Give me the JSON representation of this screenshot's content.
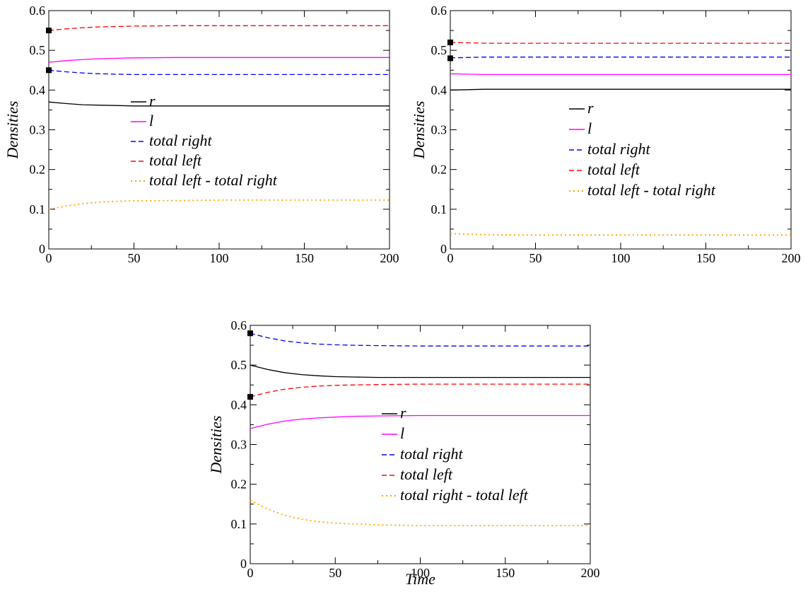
{
  "chart_data": [
    {
      "type": "line",
      "title": "",
      "xlabel": "",
      "ylabel": "Densities",
      "xlim": [
        0,
        200
      ],
      "ylim": [
        0,
        0.6
      ],
      "xticks": [
        0,
        50,
        100,
        150,
        200
      ],
      "yticks": [
        0,
        0.1,
        0.2,
        0.3,
        0.4,
        0.5,
        0.6
      ],
      "grid": false,
      "legend_position": "center",
      "series": [
        {
          "name": "r",
          "style": "solid",
          "color": "#000000",
          "x": [
            0,
            10,
            20,
            30,
            40,
            50,
            75,
            100,
            150,
            200
          ],
          "values": [
            0.37,
            0.366,
            0.363,
            0.362,
            0.361,
            0.36,
            0.36,
            0.36,
            0.36,
            0.36
          ]
        },
        {
          "name": "l",
          "style": "solid",
          "color": "#ff00ff",
          "x": [
            0,
            10,
            20,
            30,
            40,
            50,
            75,
            100,
            150,
            200
          ],
          "values": [
            0.47,
            0.474,
            0.477,
            0.479,
            0.48,
            0.481,
            0.482,
            0.482,
            0.482,
            0.482
          ]
        },
        {
          "name": "total right",
          "style": "dashed",
          "color": "#0000ff",
          "x": [
            0,
            10,
            20,
            30,
            40,
            50,
            75,
            100,
            150,
            200
          ],
          "values": [
            0.45,
            0.446,
            0.443,
            0.441,
            0.44,
            0.439,
            0.439,
            0.439,
            0.439,
            0.439
          ]
        },
        {
          "name": "total left",
          "style": "dashed",
          "color": "#ff0000",
          "x": [
            0,
            10,
            20,
            30,
            40,
            50,
            75,
            100,
            150,
            200
          ],
          "values": [
            0.55,
            0.554,
            0.557,
            0.559,
            0.56,
            0.561,
            0.562,
            0.562,
            0.562,
            0.562
          ]
        },
        {
          "name": "total left - total right",
          "style": "dotted",
          "color": "#ffa500",
          "x": [
            0,
            10,
            20,
            30,
            40,
            50,
            75,
            100,
            150,
            200
          ],
          "values": [
            0.1,
            0.108,
            0.114,
            0.118,
            0.12,
            0.121,
            0.122,
            0.123,
            0.123,
            0.123
          ]
        }
      ],
      "markers": [
        {
          "x": 0,
          "y": 0.55
        },
        {
          "x": 0,
          "y": 0.45
        }
      ]
    },
    {
      "type": "line",
      "title": "",
      "xlabel": "",
      "ylabel": "Densities",
      "xlim": [
        0,
        200
      ],
      "ylim": [
        0,
        0.6
      ],
      "xticks": [
        0,
        50,
        100,
        150,
        200
      ],
      "yticks": [
        0,
        0.1,
        0.2,
        0.3,
        0.4,
        0.5,
        0.6
      ],
      "grid": false,
      "legend_position": "center",
      "series": [
        {
          "name": "r",
          "style": "solid",
          "color": "#000000",
          "x": [
            0,
            10,
            20,
            50,
            100,
            150,
            200
          ],
          "values": [
            0.4,
            0.401,
            0.402,
            0.402,
            0.402,
            0.402,
            0.402
          ]
        },
        {
          "name": "l",
          "style": "solid",
          "color": "#ff00ff",
          "x": [
            0,
            10,
            20,
            50,
            100,
            150,
            200
          ],
          "values": [
            0.441,
            0.44,
            0.439,
            0.439,
            0.439,
            0.439,
            0.439
          ]
        },
        {
          "name": "total right",
          "style": "dashed",
          "color": "#0000ff",
          "x": [
            0,
            10,
            20,
            50,
            100,
            150,
            200
          ],
          "values": [
            0.481,
            0.482,
            0.483,
            0.483,
            0.483,
            0.483,
            0.483
          ]
        },
        {
          "name": "total left",
          "style": "dashed",
          "color": "#ff0000",
          "x": [
            0,
            10,
            20,
            50,
            100,
            150,
            200
          ],
          "values": [
            0.52,
            0.519,
            0.518,
            0.518,
            0.518,
            0.518,
            0.518
          ]
        },
        {
          "name": "total left - total right",
          "style": "dotted",
          "color": "#ffa500",
          "x": [
            0,
            10,
            20,
            50,
            100,
            150,
            200
          ],
          "values": [
            0.039,
            0.037,
            0.036,
            0.035,
            0.035,
            0.035,
            0.035
          ]
        }
      ],
      "markers": [
        {
          "x": 0,
          "y": 0.52
        },
        {
          "x": 0,
          "y": 0.48
        }
      ]
    },
    {
      "type": "line",
      "title": "",
      "xlabel": "Time",
      "ylabel": "Densities",
      "xlim": [
        0,
        200
      ],
      "ylim": [
        0,
        0.6
      ],
      "xticks": [
        0,
        50,
        100,
        150,
        200
      ],
      "yticks": [
        0,
        0.1,
        0.2,
        0.3,
        0.4,
        0.5,
        0.6
      ],
      "grid": false,
      "legend_position": "center",
      "series": [
        {
          "name": "r",
          "style": "solid",
          "color": "#000000",
          "x": [
            0,
            10,
            20,
            30,
            40,
            50,
            60,
            75,
            100,
            150,
            200
          ],
          "values": [
            0.5,
            0.489,
            0.481,
            0.476,
            0.473,
            0.471,
            0.47,
            0.469,
            0.469,
            0.469,
            0.469
          ]
        },
        {
          "name": "l",
          "style": "solid",
          "color": "#ff00ff",
          "x": [
            0,
            10,
            20,
            30,
            40,
            50,
            60,
            75,
            100,
            150,
            200
          ],
          "values": [
            0.34,
            0.351,
            0.359,
            0.364,
            0.367,
            0.369,
            0.371,
            0.372,
            0.373,
            0.373,
            0.373
          ]
        },
        {
          "name": "total right",
          "style": "dashed",
          "color": "#0000ff",
          "x": [
            0,
            10,
            20,
            30,
            40,
            50,
            60,
            75,
            100,
            150,
            200
          ],
          "values": [
            0.58,
            0.569,
            0.561,
            0.556,
            0.553,
            0.551,
            0.55,
            0.549,
            0.548,
            0.548,
            0.548
          ]
        },
        {
          "name": "total left",
          "style": "dashed",
          "color": "#ff0000",
          "x": [
            0,
            10,
            20,
            30,
            40,
            50,
            60,
            75,
            100,
            150,
            200
          ],
          "values": [
            0.42,
            0.431,
            0.439,
            0.444,
            0.447,
            0.449,
            0.45,
            0.451,
            0.452,
            0.452,
            0.452
          ]
        },
        {
          "name": "total right - total left",
          "style": "dotted",
          "color": "#ffa500",
          "x": [
            0,
            10,
            20,
            30,
            40,
            50,
            60,
            75,
            100,
            150,
            200
          ],
          "values": [
            0.16,
            0.138,
            0.122,
            0.112,
            0.106,
            0.102,
            0.1,
            0.098,
            0.096,
            0.096,
            0.096
          ]
        }
      ],
      "markers": [
        {
          "x": 0,
          "y": 0.58
        },
        {
          "x": 0,
          "y": 0.42
        }
      ]
    }
  ]
}
